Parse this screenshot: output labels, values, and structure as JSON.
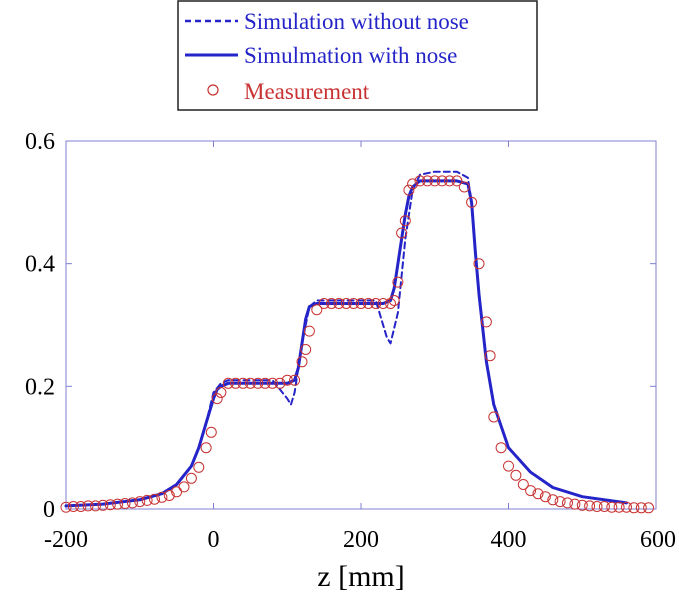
{
  "chart_data": {
    "type": "line",
    "title": "",
    "xlabel": "z [mm]",
    "ylabel": "",
    "xlim": [
      -200,
      600
    ],
    "ylim": [
      0,
      0.6
    ],
    "x_ticks": [
      -200,
      0,
      200,
      400,
      600
    ],
    "x_tick_labels": [
      "-200",
      "0",
      "200",
      "400",
      "600"
    ],
    "y_ticks": [
      0,
      0.2,
      0.4,
      0.6
    ],
    "y_tick_labels": [
      "0",
      "0.2",
      "0.4",
      "0.6"
    ],
    "grid": false,
    "legend_position": "top-center, above plot",
    "colors": {
      "simulation": "#2424c8",
      "measurement": "#c83232",
      "axis": "#7f7fd0"
    },
    "series": [
      {
        "name": "Simulation without nose",
        "style": "dashed",
        "color": "#2424c8",
        "x": [
          -200,
          -150,
          -100,
          -70,
          -50,
          -30,
          -20,
          -10,
          0,
          10,
          20,
          50,
          80,
          100,
          105,
          110,
          120,
          130,
          140,
          150,
          200,
          220,
          235,
          240,
          250,
          260,
          270,
          280,
          300,
          330,
          345,
          350,
          355,
          360,
          370,
          380,
          400,
          430,
          460,
          500,
          560
        ],
        "y": [
          0.005,
          0.008,
          0.015,
          0.025,
          0.04,
          0.07,
          0.1,
          0.14,
          0.19,
          0.205,
          0.21,
          0.21,
          0.21,
          0.18,
          0.17,
          0.19,
          0.27,
          0.33,
          0.34,
          0.34,
          0.34,
          0.34,
          0.28,
          0.27,
          0.32,
          0.44,
          0.52,
          0.545,
          0.55,
          0.55,
          0.54,
          0.5,
          0.42,
          0.35,
          0.24,
          0.17,
          0.1,
          0.06,
          0.035,
          0.02,
          0.01
        ]
      },
      {
        "name": "Simulmation with nose",
        "style": "solid",
        "color": "#2424c8",
        "x": [
          -200,
          -150,
          -100,
          -70,
          -50,
          -30,
          -20,
          -10,
          0,
          5,
          10,
          20,
          50,
          80,
          100,
          110,
          115,
          120,
          125,
          130,
          140,
          150,
          200,
          230,
          240,
          245,
          250,
          255,
          260,
          265,
          270,
          280,
          300,
          330,
          345,
          350,
          355,
          360,
          370,
          380,
          400,
          430,
          460,
          500,
          560
        ],
        "y": [
          0.005,
          0.008,
          0.015,
          0.025,
          0.04,
          0.07,
          0.1,
          0.14,
          0.18,
          0.195,
          0.2,
          0.205,
          0.205,
          0.205,
          0.205,
          0.21,
          0.23,
          0.27,
          0.31,
          0.33,
          0.335,
          0.335,
          0.335,
          0.335,
          0.34,
          0.36,
          0.4,
          0.44,
          0.48,
          0.51,
          0.525,
          0.535,
          0.535,
          0.535,
          0.53,
          0.5,
          0.42,
          0.35,
          0.24,
          0.17,
          0.1,
          0.06,
          0.035,
          0.02,
          0.01
        ]
      },
      {
        "name": "Measurement",
        "style": "markers",
        "marker": "circle",
        "color": "#c83232",
        "x": [
          -200,
          -190,
          -180,
          -170,
          -160,
          -150,
          -140,
          -130,
          -120,
          -110,
          -100,
          -90,
          -80,
          -70,
          -60,
          -50,
          -40,
          -30,
          -20,
          -10,
          -3,
          5,
          10,
          20,
          30,
          40,
          50,
          60,
          70,
          80,
          90,
          100,
          110,
          120,
          125,
          130,
          140,
          150,
          160,
          170,
          180,
          190,
          200,
          210,
          220,
          230,
          240,
          245,
          250,
          255,
          260,
          265,
          270,
          280,
          290,
          300,
          310,
          320,
          330,
          340,
          350,
          360,
          370,
          375,
          380,
          390,
          400,
          410,
          420,
          430,
          440,
          450,
          460,
          470,
          480,
          490,
          500,
          510,
          520,
          530,
          540,
          550,
          560,
          570,
          580,
          590
        ],
        "y": [
          0.003,
          0.004,
          0.004,
          0.005,
          0.005,
          0.006,
          0.007,
          0.008,
          0.009,
          0.01,
          0.012,
          0.014,
          0.016,
          0.019,
          0.022,
          0.028,
          0.036,
          0.05,
          0.068,
          0.1,
          0.125,
          0.18,
          0.19,
          0.205,
          0.205,
          0.205,
          0.205,
          0.205,
          0.205,
          0.205,
          0.205,
          0.21,
          0.21,
          0.24,
          0.26,
          0.29,
          0.325,
          0.335,
          0.335,
          0.335,
          0.335,
          0.335,
          0.335,
          0.335,
          0.335,
          0.335,
          0.335,
          0.34,
          0.37,
          0.45,
          0.47,
          0.52,
          0.53,
          0.535,
          0.535,
          0.535,
          0.535,
          0.535,
          0.535,
          0.525,
          0.5,
          0.4,
          0.305,
          0.25,
          0.15,
          0.1,
          0.07,
          0.055,
          0.04,
          0.03,
          0.025,
          0.02,
          0.015,
          0.012,
          0.01,
          0.008,
          0.006,
          0.005,
          0.004,
          0.004,
          0.003,
          0.003,
          0.003,
          0.002,
          0.002,
          0.002
        ]
      }
    ]
  }
}
